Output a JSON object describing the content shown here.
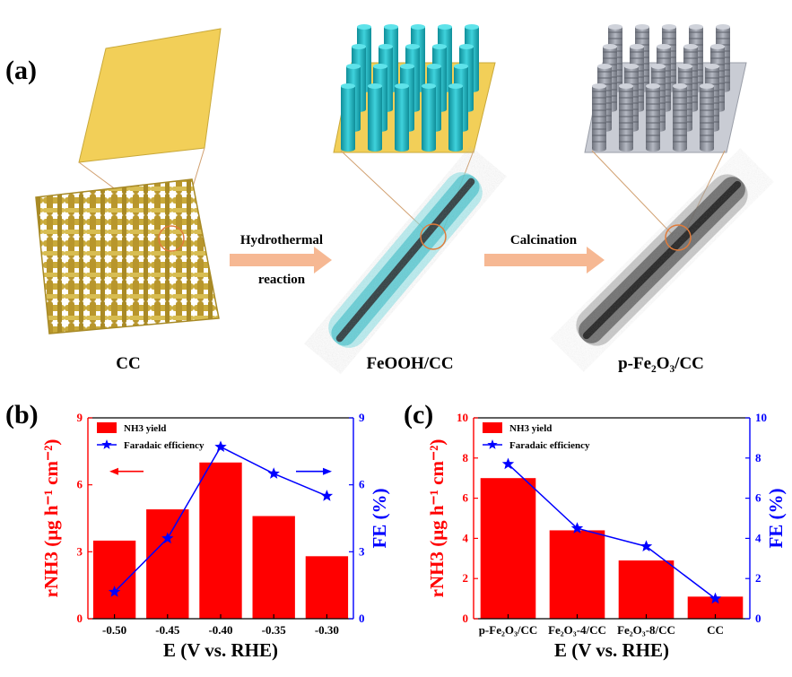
{
  "panel_a": {
    "label": "(a)",
    "stage_labels": [
      "CC",
      "FeOOH/CC",
      "p-Fe₂O₃/CC"
    ],
    "process_1": [
      "Hydrothermal",
      "reaction"
    ],
    "process_2": "Calcination",
    "colors": {
      "carbon_cloth": "#c9aa3a",
      "feooh": "#26b8c4",
      "fe2o3": "#8a8e99",
      "arrow": "#f6b893"
    }
  },
  "chart_data": [
    {
      "panel": "(b)",
      "type": "bar",
      "categories": [
        "-0.50",
        "-0.45",
        "-0.40",
        "-0.35",
        "-0.30"
      ],
      "xlabel": "E (V vs. RHE)",
      "ylabel": "rNH3 (μg h⁻¹ cm⁻²)",
      "y2label": "FE (%)",
      "ylim": [
        0,
        9
      ],
      "y2lim": [
        0,
        9
      ],
      "yticks": [
        0,
        3,
        6,
        9
      ],
      "y2ticks": [
        0,
        3,
        6,
        9
      ],
      "series": [
        {
          "name": "NH3 yield",
          "kind": "bar",
          "axis": "left",
          "color": "#ff0000",
          "values": [
            3.5,
            4.9,
            7.0,
            4.6,
            2.8
          ]
        },
        {
          "name": "Faradaic efficiency",
          "kind": "line",
          "axis": "right",
          "color": "#0000ff",
          "marker": "star",
          "values": [
            1.2,
            3.6,
            7.7,
            6.5,
            5.5
          ]
        }
      ],
      "legend_position": "top-left",
      "annotations": "arrows indicating axes: red left, blue right"
    },
    {
      "panel": "(c)",
      "type": "bar",
      "categories": [
        "p-Fe₂O₃/CC",
        "Fe₂O₃-4/CC",
        "Fe₂O₃-8/CC",
        "CC"
      ],
      "xlabel": "E (V vs. RHE)",
      "ylabel": "rNH3 (μg h⁻¹ cm⁻²)",
      "y2label": "FE (%)",
      "ylim": [
        0,
        10
      ],
      "y2lim": [
        0,
        10
      ],
      "yticks": [
        0,
        2,
        4,
        6,
        8,
        10
      ],
      "y2ticks": [
        0,
        2,
        4,
        6,
        8,
        10
      ],
      "series": [
        {
          "name": "NH3 yield",
          "kind": "bar",
          "axis": "left",
          "color": "#ff0000",
          "values": [
            7.0,
            4.4,
            2.9,
            1.1
          ]
        },
        {
          "name": "Faradaic efficiency",
          "kind": "line",
          "axis": "right",
          "color": "#0000ff",
          "marker": "star",
          "values": [
            7.7,
            4.5,
            3.6,
            1.0
          ]
        }
      ],
      "legend_position": "top-left"
    }
  ]
}
